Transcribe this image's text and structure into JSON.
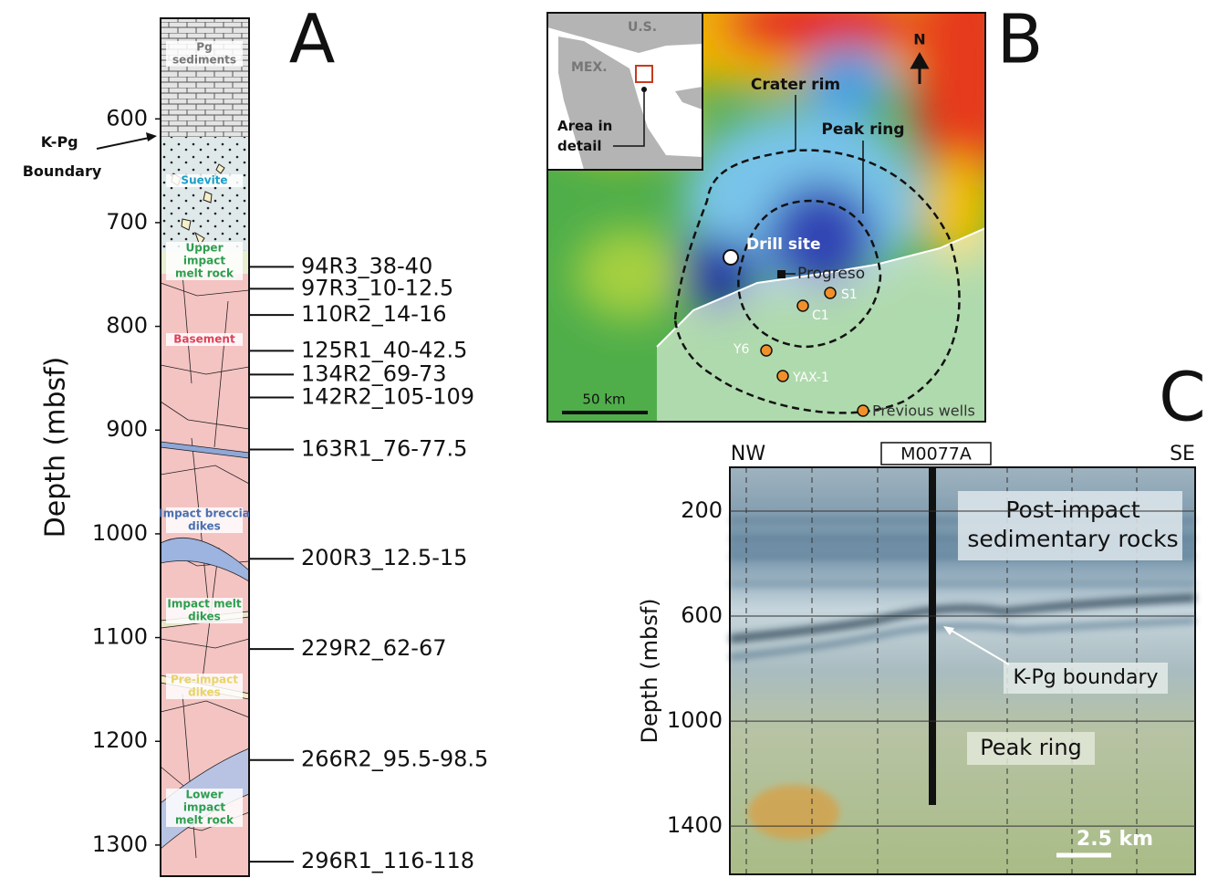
{
  "panel_a": {
    "letter": "A",
    "axis_label": "Depth (mbsf)",
    "ylim": [
      503,
      1330
    ],
    "yticks": [
      600,
      700,
      800,
      900,
      1000,
      1100,
      1200,
      1300
    ],
    "boundary_label": [
      "K-Pg",
      "Boundary"
    ],
    "units": [
      {
        "lines": [
          "Pg",
          "sediments"
        ],
        "color": "#777777"
      },
      {
        "lines": [
          "Suevite"
        ],
        "color": "#1a9fc8"
      },
      {
        "lines": [
          "Upper",
          "impact",
          "melt rock"
        ],
        "color": "#2e9e4f"
      },
      {
        "lines": [
          "Basement"
        ],
        "color": "#e0405a"
      },
      {
        "lines": [
          "Impact breccia",
          "dikes"
        ],
        "color": "#4a6fb0"
      },
      {
        "lines": [
          "Impact melt",
          "dikes"
        ],
        "color": "#2e9e4f"
      },
      {
        "lines": [
          "Pre-impact",
          "dikes"
        ],
        "color": "#e8d36a"
      },
      {
        "lines": [
          "Lower",
          "impact",
          "melt rock"
        ],
        "color": "#2e9e4f"
      }
    ],
    "samples": [
      {
        "label": "94R3_38-40",
        "depth": 742.6
      },
      {
        "label": "97R3_10-12.5",
        "depth": 763.7
      },
      {
        "label": "110R2_14-16",
        "depth": 789
      },
      {
        "label": "125R1_40-42.5",
        "depth": 823.6
      },
      {
        "label": "134R2_69-73",
        "depth": 846.5
      },
      {
        "label": "142R2_105-109",
        "depth": 868.5
      },
      {
        "label": "163R1_76-77.5",
        "depth": 918.7
      },
      {
        "label": "200R3_12.5-15",
        "depth": 1024
      },
      {
        "label": "229R2_62-67",
        "depth": 1111
      },
      {
        "label": "266R2_95.5-98.5",
        "depth": 1218
      },
      {
        "label": "296R1_116-118",
        "depth": 1316
      }
    ]
  },
  "panel_b": {
    "letter": "B",
    "inset": {
      "us": "U.S.",
      "mex": "MEX.",
      "area": [
        "Area in",
        "detail"
      ]
    },
    "north": "N",
    "crater_rim": "Crater rim",
    "peak_ring": "Peak ring",
    "drill_site": "Drill site",
    "town": "Progreso",
    "wells": [
      "S1",
      "C1",
      "Y6",
      "YAX-1"
    ],
    "legend": "Previous wells",
    "scale": "50 km"
  },
  "panel_c": {
    "letter": "C",
    "left": "NW",
    "right": "SE",
    "well": "M0077A",
    "axis_label": "Depth (mbsf)",
    "ylim": [
      33,
      1584
    ],
    "yticks": [
      200,
      600,
      1000,
      1400
    ],
    "labels": {
      "sediments": [
        "Post-impact",
        "sedimentary rocks"
      ],
      "boundary": "K-Pg boundary",
      "peak_ring": "Peak ring"
    },
    "scale": "2.5 km"
  }
}
